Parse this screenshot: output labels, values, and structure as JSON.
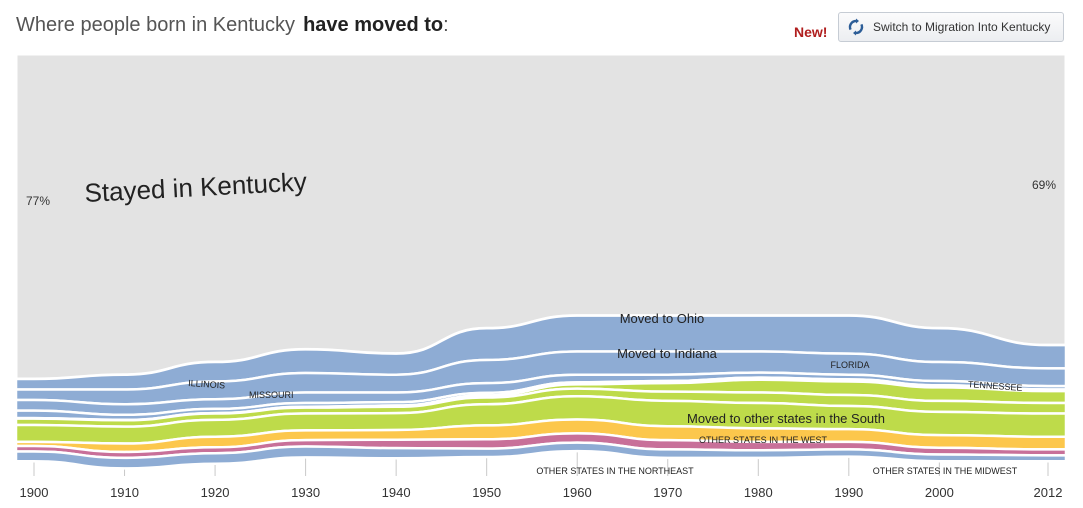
{
  "header": {
    "title_prefix": "Where people born in Kentucky",
    "title_emphasis": "have moved to",
    "title_suffix": ":",
    "new_badge": "New!",
    "switch_button_label": "Switch to Migration Into Kentucky"
  },
  "colors": {
    "stayed": "#e3e3e3",
    "midwest": "#8eacd4",
    "south": "#bedb4a",
    "west": "#fcc74c",
    "northeast": "#c87099",
    "text": "#333333"
  },
  "chart_data": {
    "type": "area",
    "title": "Where people born in Kentucky have moved to",
    "x": [
      1900,
      1910,
      1920,
      1930,
      1940,
      1950,
      1960,
      1970,
      1980,
      1990,
      2000,
      2012
    ],
    "tick_labels": [
      "1900",
      "1910",
      "1920",
      "1930",
      "1940",
      "1950",
      "1960",
      "1970",
      "1980",
      "1990",
      "2000",
      "2012"
    ],
    "xlabel": "",
    "ylabel": "",
    "ylim": [
      0,
      100
    ],
    "series": [
      {
        "name": "Stayed in Kentucky",
        "group": "stayed",
        "values": [
          77,
          76,
          73,
          70,
          71,
          65,
          62,
          62,
          62,
          62,
          65,
          69
        ]
      },
      {
        "name": "Moved to Ohio",
        "group": "midwest",
        "values": [
          2.5,
          3.5,
          4.6,
          5.6,
          5,
          7.5,
          8.5,
          8.5,
          8.5,
          9,
          8,
          5.5
        ]
      },
      {
        "name": "Moved to Indiana",
        "group": "midwest",
        "values": [
          2.5,
          3.5,
          4.2,
          4.6,
          4.2,
          5.5,
          5.5,
          5.5,
          5,
          5,
          4.5,
          4.2
        ]
      },
      {
        "name": "Illinois",
        "group": "midwest",
        "values": [
          2.5,
          2.5,
          2.3,
          2.5,
          2.3,
          2.3,
          1.8,
          1.5,
          1.2,
          1.1,
          1,
          0.8
        ]
      },
      {
        "name": "Missouri",
        "group": "midwest",
        "values": [
          1.8,
          1.2,
          1,
          0.9,
          0.8,
          0.6,
          0.5,
          0.5,
          0.5,
          0.5,
          0.5,
          0.4
        ]
      },
      {
        "name": "Florida",
        "group": "south",
        "values": [
          0.1,
          0.1,
          0.1,
          0.2,
          0.3,
          0.5,
          1,
          2,
          3,
          3.2,
          3.2,
          2.8
        ]
      },
      {
        "name": "Tennessee",
        "group": "south",
        "values": [
          1.5,
          1.5,
          1.5,
          1.4,
          1.5,
          1.6,
          1.8,
          2.2,
          2.5,
          2.6,
          2.6,
          2.5
        ]
      },
      {
        "name": "Moved to other states in the South",
        "group": "south",
        "values": [
          4,
          4,
          4,
          4,
          4,
          5,
          5.5,
          6,
          6,
          5.5,
          5.5,
          5.5
        ]
      },
      {
        "name": "Other states in the West",
        "group": "west",
        "values": [
          1,
          2,
          2.5,
          2.3,
          2.3,
          3.3,
          3.3,
          3.3,
          3.2,
          3,
          3,
          3
        ]
      },
      {
        "name": "Other states in the Northeast",
        "group": "northeast",
        "values": [
          1.3,
          1.4,
          1.4,
          1.5,
          2,
          2.2,
          2.2,
          2.2,
          2,
          1.8,
          1.6,
          1.4
        ]
      },
      {
        "name": "Other states in the Midwest",
        "group": "midwest",
        "values": [
          2.3,
          2.5,
          2.5,
          2.6,
          2.4,
          2,
          2,
          2,
          1.8,
          1.7,
          1.6,
          1.4
        ]
      }
    ],
    "annotations": {
      "stayed_label": "Stayed in Kentucky",
      "start_percent": "77%",
      "end_percent": "69%",
      "ohio": "Moved to Ohio",
      "indiana": "Moved to Indiana",
      "illinois": "ILLINOIS",
      "missouri": "MISSOURI",
      "florida": "FLORIDA",
      "tennessee": "TENNESSEE",
      "south_other": "Moved to other states in the South",
      "west": "OTHER STATES IN THE WEST",
      "northeast": "OTHER STATES IN THE NORTHEAST",
      "midwest": "OTHER STATES IN THE MIDWEST"
    }
  }
}
